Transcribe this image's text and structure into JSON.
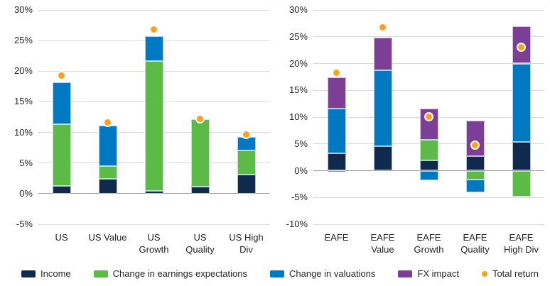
{
  "colors": {
    "income": "#0f2a4c",
    "earnings": "#5cbb46",
    "valuations": "#0078c2",
    "fx": "#7d3f96",
    "total_return": "#f8a31b",
    "gridline": "#d9d9d9",
    "zero_line": "#9b9b9b",
    "text": "#262626"
  },
  "legend": {
    "items": [
      {
        "key": "income",
        "label": "Income",
        "color": "#0f2a4c",
        "shape": "rect"
      },
      {
        "key": "earnings",
        "label": "Change in earnings expectations",
        "color": "#5cbb46",
        "shape": "rect"
      },
      {
        "key": "valuations",
        "label": "Change in valuations",
        "color": "#0078c2",
        "shape": "rect"
      },
      {
        "key": "fx",
        "label": "FX impact",
        "color": "#7d3f96",
        "shape": "rect"
      },
      {
        "key": "total-return",
        "label": "Total return",
        "color": "#f8a31b",
        "shape": "dot"
      }
    ]
  },
  "chart_data": [
    {
      "type": "bar",
      "subtype": "stacked-column-with-total-dot",
      "title": "",
      "categories": [
        "US",
        "US Value",
        "US\nGrowth",
        "US\nQuality",
        "US High\nDiv"
      ],
      "series": [
        {
          "key": "income",
          "name": "Income",
          "color": "#0f2a4c",
          "values": [
            1.3,
            2.4,
            0.4,
            1.1,
            3.1
          ]
        },
        {
          "key": "earnings",
          "name": "Change in earnings expectations",
          "color": "#5cbb46",
          "values": [
            10.0,
            2.1,
            21.3,
            11.0,
            3.9
          ]
        },
        {
          "key": "valuations",
          "name": "Change in valuations",
          "color": "#0078c2",
          "values": [
            6.9,
            6.6,
            4.0,
            0,
            2.3
          ]
        },
        {
          "key": "fx",
          "name": "FX impact",
          "color": "#7d3f96",
          "values": [
            0,
            0,
            0,
            0,
            0
          ]
        }
      ],
      "total_return": {
        "name": "Total return",
        "color": "#f8a31b",
        "values": [
          19.3,
          11.6,
          26.8,
          12.2,
          9.7
        ]
      },
      "ylim": [
        -5,
        30
      ],
      "ytick_step": 5,
      "ytick_format": "percent",
      "grid": true,
      "legend_position": "bottom-shared"
    },
    {
      "type": "bar",
      "subtype": "stacked-column-with-total-dot",
      "title": "",
      "categories": [
        "EAFE",
        "EAFE\nValue",
        "EAFE\nGrowth",
        "EAFE\nQuality",
        "EAFE\nHigh Div"
      ],
      "series": [
        {
          "key": "income",
          "name": "Income",
          "color": "#0f2a4c",
          "values": [
            3.3,
            4.6,
            1.9,
            2.7,
            5.3
          ]
        },
        {
          "key": "earnings",
          "name": "Change in earnings expectations",
          "color": "#5cbb46",
          "values": [
            -0.2,
            0,
            3.8,
            -1.6,
            -4.8
          ]
        },
        {
          "key": "valuations",
          "name": "Change in valuations",
          "color": "#0078c2",
          "values": [
            8.3,
            14.2,
            -1.8,
            -2.4,
            14.7
          ]
        },
        {
          "key": "fx",
          "name": "FX impact",
          "color": "#7d3f96",
          "values": [
            5.8,
            6.0,
            5.9,
            6.6,
            7.0
          ]
        }
      ],
      "total_return": {
        "name": "Total return",
        "color": "#f8a31b",
        "values": [
          18.3,
          26.7,
          10.1,
          4.8,
          23.1
        ]
      },
      "ylim": [
        -10,
        30
      ],
      "ytick_step": 5,
      "ytick_format": "percent",
      "grid": true,
      "legend_position": "bottom-shared"
    }
  ]
}
